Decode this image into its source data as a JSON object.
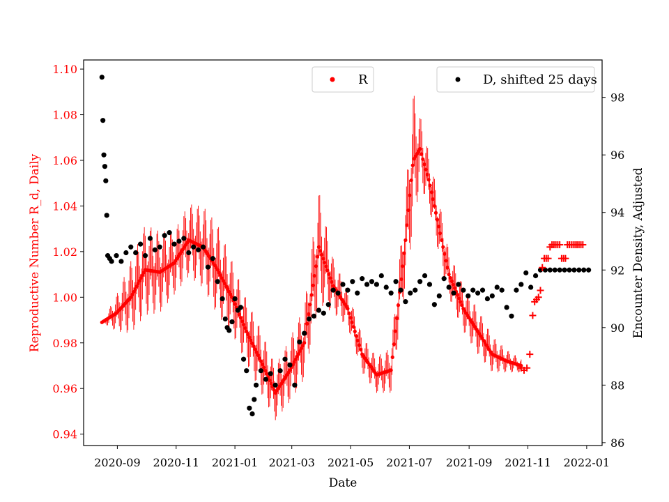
{
  "chart_data": {
    "type": "scatter",
    "xlabel": "Date",
    "ylabel_left": "Reproductive Number R_d, Daily",
    "ylabel_right": "Encounter Density, Adjusted",
    "x_ticks": [
      "2020-09",
      "2020-11",
      "2021-01",
      "2021-03",
      "2021-05",
      "2021-07",
      "2021-09",
      "2021-11",
      "2022-01"
    ],
    "x_tick_days": [
      16,
      77,
      138,
      197,
      258,
      319,
      381,
      442,
      503
    ],
    "x_range_days": [
      -19,
      519
    ],
    "y_left_ticks": [
      "0.94",
      "0.96",
      "0.98",
      "1.00",
      "1.02",
      "1.04",
      "1.06",
      "1.08",
      "1.10"
    ],
    "y_left_range": [
      0.935,
      1.104
    ],
    "y_right_ticks": [
      "86",
      "88",
      "90",
      "92",
      "94",
      "96",
      "98"
    ],
    "y_right_range": [
      85.9,
      99.3
    ],
    "colors": {
      "R": "#ff0000",
      "D": "#000000",
      "axis": "#000000"
    },
    "legend_R": {
      "label": "R",
      "position": "top-center"
    },
    "legend_D": {
      "label": "D, shifted 25 days",
      "position": "top-right"
    },
    "series_R_trend": {
      "name": "R",
      "axis": "left",
      "x": [
        0,
        15,
        30,
        45,
        60,
        75,
        90,
        105,
        120,
        135,
        150,
        165,
        180,
        195,
        210,
        225,
        240,
        255,
        270,
        285,
        300,
        315,
        323,
        330,
        340,
        350,
        360,
        375,
        390,
        405,
        420,
        435
      ],
      "y": [
        0.989,
        0.993,
        1.0,
        1.012,
        1.011,
        1.015,
        1.025,
        1.022,
        1.012,
        1.0,
        0.985,
        0.972,
        0.958,
        0.968,
        0.98,
        1.022,
        1.005,
        0.995,
        0.975,
        0.966,
        0.968,
        1.025,
        1.06,
        1.065,
        1.05,
        1.03,
        1.01,
        0.995,
        0.985,
        0.975,
        0.972,
        0.97
      ]
    },
    "series_R_amplitude": {
      "x": [
        0,
        15,
        30,
        45,
        60,
        75,
        90,
        105,
        120,
        135,
        150,
        165,
        180,
        195,
        210,
        225,
        240,
        255,
        270,
        285,
        300,
        315,
        323,
        330,
        340,
        350,
        360,
        375,
        390,
        405,
        420,
        435
      ],
      "a": [
        0.0,
        0.008,
        0.016,
        0.02,
        0.018,
        0.014,
        0.016,
        0.018,
        0.02,
        0.016,
        0.014,
        0.014,
        0.012,
        0.014,
        0.016,
        0.025,
        0.012,
        0.008,
        0.008,
        0.008,
        0.01,
        0.02,
        0.03,
        0.015,
        0.012,
        0.012,
        0.01,
        0.01,
        0.01,
        0.008,
        0.005,
        0.003
      ]
    },
    "series_R_plus": {
      "name": "R (cross markers)",
      "axis": "left",
      "x": [
        435,
        438,
        441,
        444,
        447,
        449,
        451,
        453,
        455,
        457,
        459,
        461,
        463,
        465,
        467,
        469,
        471,
        473,
        475,
        477,
        479,
        481,
        483,
        485,
        487,
        489,
        491,
        493,
        495,
        497,
        499
      ],
      "y": [
        0.969,
        0.968,
        0.969,
        0.975,
        0.992,
        0.998,
        0.999,
        1.0,
        1.003,
        1.013,
        1.017,
        1.017,
        1.017,
        1.022,
        1.023,
        1.023,
        1.023,
        1.023,
        1.023,
        1.017,
        1.017,
        1.017,
        1.023,
        1.023,
        1.023,
        1.023,
        1.023,
        1.023,
        1.023,
        1.023,
        1.023
      ]
    },
    "series_D": {
      "name": "D, shifted 25 days",
      "axis": "right",
      "x": [
        0,
        1,
        2,
        3,
        4,
        5,
        6,
        8,
        10,
        15,
        20,
        25,
        30,
        35,
        40,
        45,
        50,
        55,
        60,
        65,
        70,
        75,
        80,
        85,
        90,
        95,
        100,
        105,
        110,
        115,
        120,
        125,
        128,
        130,
        132,
        135,
        138,
        141,
        144,
        147,
        150,
        153,
        156,
        158,
        160,
        165,
        170,
        175,
        180,
        185,
        190,
        195,
        200,
        205,
        210,
        215,
        220,
        225,
        230,
        235,
        240,
        245,
        250,
        255,
        260,
        265,
        270,
        275,
        280,
        285,
        290,
        295,
        300,
        305,
        310,
        315,
        320,
        325,
        330,
        335,
        340,
        345,
        350,
        355,
        360,
        365,
        370,
        375,
        380,
        385,
        390,
        395,
        400,
        405,
        410,
        415,
        420,
        425,
        430,
        435,
        440,
        445,
        450,
        455,
        460,
        465,
        470,
        475,
        480,
        485,
        490,
        495,
        500,
        505
      ],
      "y": [
        98.7,
        97.2,
        96.0,
        95.6,
        95.1,
        93.9,
        92.5,
        92.4,
        92.3,
        92.5,
        92.3,
        92.6,
        92.8,
        92.6,
        92.9,
        92.5,
        93.1,
        92.7,
        92.8,
        93.2,
        93.3,
        92.9,
        93.0,
        93.1,
        92.6,
        92.8,
        92.7,
        92.8,
        92.1,
        92.4,
        91.6,
        91.0,
        90.3,
        90.0,
        89.9,
        90.2,
        91.0,
        90.6,
        90.7,
        88.9,
        88.5,
        87.2,
        87.0,
        87.5,
        88.0,
        88.5,
        88.2,
        88.4,
        88.0,
        88.5,
        88.9,
        88.7,
        88.0,
        89.5,
        89.8,
        90.3,
        90.4,
        90.6,
        90.5,
        90.8,
        91.3,
        91.2,
        91.5,
        91.3,
        91.6,
        91.2,
        91.7,
        91.5,
        91.6,
        91.5,
        91.8,
        91.4,
        91.2,
        91.6,
        91.3,
        90.9,
        91.2,
        91.3,
        91.6,
        91.8,
        91.5,
        90.8,
        91.1,
        91.7,
        91.4,
        91.2,
        91.5,
        91.3,
        91.1,
        91.3,
        91.2,
        91.3,
        91.0,
        91.1,
        91.4,
        91.3,
        90.7,
        90.4,
        91.3,
        91.5,
        91.9,
        91.4,
        91.8,
        92.0,
        92.0,
        92.0,
        92.0,
        92.0,
        92.0,
        92.0,
        92.0,
        92.0,
        92.0,
        92.0
      ]
    }
  }
}
